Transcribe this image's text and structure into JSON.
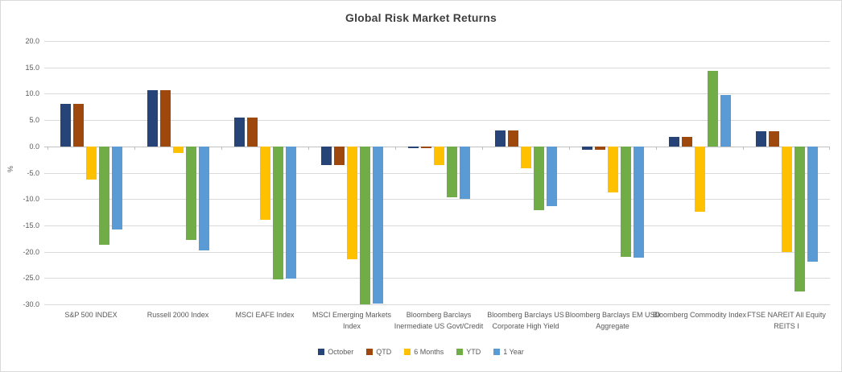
{
  "title": "Global Risk Market Returns",
  "chart_data": {
    "type": "bar",
    "title": "Global Risk Market Returns",
    "xlabel": "",
    "ylabel": "%",
    "ylim": [
      -30,
      20
    ],
    "grid": true,
    "legend_position": "bottom",
    "ytick_labels": [
      "20.0",
      "15.0",
      "10.0",
      "5.0",
      "0.0",
      "-5.0",
      "-10.0",
      "-15.0",
      "-20.0",
      "-25.0",
      "-30.0"
    ],
    "categories": [
      "S&P 500 INDEX",
      "Russell 2000 Index",
      "MSCI EAFE Index",
      "MSCI Emerging Markets Index",
      "Bloomberg Barclays Inermediate US Govt/Credit",
      "Bloomberg Barclays US Corporate High Yield",
      "Bloomberg Barclays EM USD Aggregate",
      "Bloomberg Commodity Index",
      "FTSE NAREIT All Equity REITS I"
    ],
    "series": [
      {
        "name": "October",
        "color": "#264478",
        "values": [
          8.0,
          10.6,
          5.4,
          -3.5,
          -0.3,
          3.0,
          -0.6,
          1.8,
          2.8
        ]
      },
      {
        "name": "QTD",
        "color": "#9E480E",
        "values": [
          8.0,
          10.6,
          5.4,
          -3.5,
          -0.3,
          3.0,
          -0.6,
          1.8,
          2.8
        ]
      },
      {
        "name": "6 Months",
        "color": "#FFC000",
        "values": [
          -6.3,
          -1.3,
          -14.0,
          -21.5,
          -3.6,
          -4.2,
          -8.8,
          -12.4,
          -20.1
        ]
      },
      {
        "name": "YTD",
        "color": "#70AD47",
        "values": [
          -18.7,
          -17.8,
          -25.3,
          -30.0,
          -9.7,
          -12.1,
          -21.0,
          14.4,
          -27.6
        ]
      },
      {
        "name": "1 Year",
        "color": "#5B9BD5",
        "values": [
          -15.8,
          -19.8,
          -25.1,
          -29.9,
          -9.9,
          -11.4,
          -21.1,
          9.8,
          -21.9
        ]
      }
    ]
  },
  "colors": {
    "gridline": "#d9d9d9",
    "axis_text": "#595959",
    "title_text": "#404040",
    "frame_border": "#d9d9d9"
  }
}
